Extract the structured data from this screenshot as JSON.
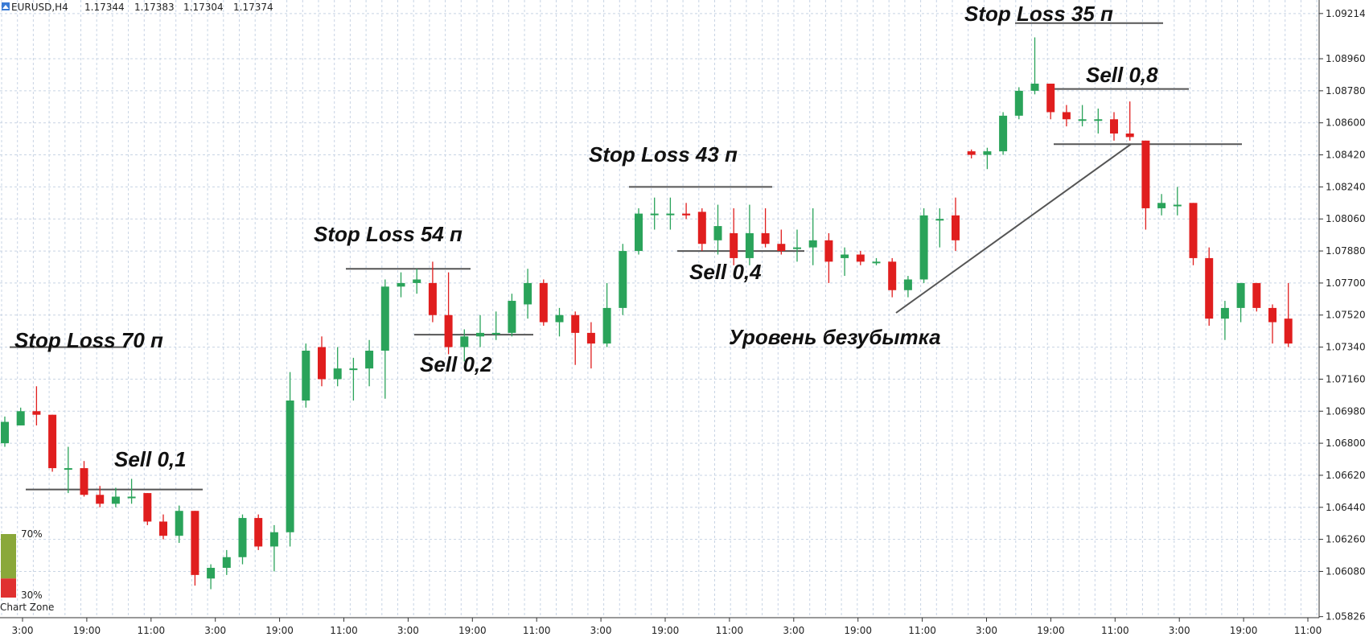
{
  "header": {
    "symbol": "EURUSD,H4",
    "open": "1.17344",
    "high": "1.17383",
    "low": "1.17304",
    "close": "1.17374"
  },
  "chart_zone": {
    "top_label": "70%",
    "bottom_label": "30%",
    "title": "Chart Zone",
    "green_share": 0.7,
    "colors": {
      "green": "#8aa83a",
      "red": "#e03030"
    }
  },
  "chart_data": {
    "type": "candlestick",
    "ylim": [
      1.0582,
      1.0929
    ],
    "y_ticks": [
      "1.09214",
      "1.08960",
      "1.08780",
      "1.08600",
      "1.08420",
      "1.08240",
      "1.08060",
      "1.07880",
      "1.07700",
      "1.07520",
      "1.07340",
      "1.07160",
      "1.06980",
      "1.06800",
      "1.06620",
      "1.06440",
      "1.06260",
      "1.06080",
      "1.05826"
    ],
    "x_ticks": [
      "3:00",
      "19:00",
      "11:00",
      "3:00",
      "19:00",
      "11:00",
      "3:00",
      "19:00",
      "11:00",
      "3:00",
      "19:00",
      "11:00",
      "3:00",
      "19:00",
      "11:00",
      "3:00",
      "19:00",
      "11:00",
      "3:00",
      "19:00",
      "11:00"
    ],
    "grid": true,
    "colors": {
      "up": "#2aa35a",
      "down": "#e01e1e",
      "grid": "#c8d4e4",
      "line": "#555555"
    },
    "candles": [
      {
        "o": 1.068,
        "h": 1.0695,
        "l": 1.0678,
        "c": 1.0692
      },
      {
        "o": 1.069,
        "h": 1.07,
        "l": 1.069,
        "c": 1.0698
      },
      {
        "o": 1.0698,
        "h": 1.0712,
        "l": 1.069,
        "c": 1.0696
      },
      {
        "o": 1.0696,
        "h": 1.0696,
        "l": 1.0664,
        "c": 1.0666
      },
      {
        "o": 1.0666,
        "h": 1.0678,
        "l": 1.0652,
        "c": 1.0666
      },
      {
        "o": 1.0666,
        "h": 1.067,
        "l": 1.065,
        "c": 1.0651
      },
      {
        "o": 1.0651,
        "h": 1.0656,
        "l": 1.0644,
        "c": 1.0646
      },
      {
        "o": 1.0646,
        "h": 1.0655,
        "l": 1.0644,
        "c": 1.065
      },
      {
        "o": 1.065,
        "h": 1.066,
        "l": 1.0646,
        "c": 1.065
      },
      {
        "o": 1.0652,
        "h": 1.0652,
        "l": 1.0634,
        "c": 1.0636
      },
      {
        "o": 1.0636,
        "h": 1.064,
        "l": 1.0626,
        "c": 1.0628
      },
      {
        "o": 1.0628,
        "h": 1.0645,
        "l": 1.0624,
        "c": 1.0642
      },
      {
        "o": 1.0642,
        "h": 1.0642,
        "l": 1.06,
        "c": 1.0606
      },
      {
        "o": 1.0604,
        "h": 1.0612,
        "l": 1.0598,
        "c": 1.061
      },
      {
        "o": 1.061,
        "h": 1.062,
        "l": 1.0606,
        "c": 1.0616
      },
      {
        "o": 1.0616,
        "h": 1.064,
        "l": 1.0612,
        "c": 1.0638
      },
      {
        "o": 1.0638,
        "h": 1.064,
        "l": 1.062,
        "c": 1.0622
      },
      {
        "o": 1.0622,
        "h": 1.0634,
        "l": 1.0608,
        "c": 1.063
      },
      {
        "o": 1.063,
        "h": 1.072,
        "l": 1.0622,
        "c": 1.0704
      },
      {
        "o": 1.0704,
        "h": 1.0736,
        "l": 1.07,
        "c": 1.0732
      },
      {
        "o": 1.0734,
        "h": 1.074,
        "l": 1.0712,
        "c": 1.0716
      },
      {
        "o": 1.0716,
        "h": 1.0734,
        "l": 1.0712,
        "c": 1.0722
      },
      {
        "o": 1.0722,
        "h": 1.0728,
        "l": 1.0704,
        "c": 1.0722
      },
      {
        "o": 1.0722,
        "h": 1.0738,
        "l": 1.0712,
        "c": 1.0732
      },
      {
        "o": 1.0732,
        "h": 1.0772,
        "l": 1.0705,
        "c": 1.0768
      },
      {
        "o": 1.0768,
        "h": 1.0776,
        "l": 1.0762,
        "c": 1.077
      },
      {
        "o": 1.077,
        "h": 1.0778,
        "l": 1.0764,
        "c": 1.0772
      },
      {
        "o": 1.077,
        "h": 1.0782,
        "l": 1.0748,
        "c": 1.0752
      },
      {
        "o": 1.0752,
        "h": 1.0776,
        "l": 1.073,
        "c": 1.0734
      },
      {
        "o": 1.0734,
        "h": 1.0744,
        "l": 1.0726,
        "c": 1.074
      },
      {
        "o": 1.074,
        "h": 1.0752,
        "l": 1.0734,
        "c": 1.0742
      },
      {
        "o": 1.0742,
        "h": 1.0754,
        "l": 1.0738,
        "c": 1.0742
      },
      {
        "o": 1.0742,
        "h": 1.0764,
        "l": 1.074,
        "c": 1.076
      },
      {
        "o": 1.0758,
        "h": 1.0778,
        "l": 1.075,
        "c": 1.077
      },
      {
        "o": 1.077,
        "h": 1.0772,
        "l": 1.0746,
        "c": 1.0748
      },
      {
        "o": 1.0748,
        "h": 1.0756,
        "l": 1.074,
        "c": 1.0752
      },
      {
        "o": 1.0752,
        "h": 1.0754,
        "l": 1.0724,
        "c": 1.0742
      },
      {
        "o": 1.0742,
        "h": 1.0748,
        "l": 1.0722,
        "c": 1.0736
      },
      {
        "o": 1.0736,
        "h": 1.077,
        "l": 1.0734,
        "c": 1.0756
      },
      {
        "o": 1.0756,
        "h": 1.0792,
        "l": 1.0752,
        "c": 1.0788
      },
      {
        "o": 1.0788,
        "h": 1.0812,
        "l": 1.0786,
        "c": 1.0809
      },
      {
        "o": 1.0809,
        "h": 1.0818,
        "l": 1.08,
        "c": 1.0809
      },
      {
        "o": 1.0809,
        "h": 1.0818,
        "l": 1.08,
        "c": 1.0809
      },
      {
        "o": 1.0809,
        "h": 1.0815,
        "l": 1.0806,
        "c": 1.0808
      },
      {
        "o": 1.081,
        "h": 1.0812,
        "l": 1.0788,
        "c": 1.0792
      },
      {
        "o": 1.0794,
        "h": 1.0814,
        "l": 1.0786,
        "c": 1.0802
      },
      {
        "o": 1.0798,
        "h": 1.0812,
        "l": 1.078,
        "c": 1.0784
      },
      {
        "o": 1.0784,
        "h": 1.0814,
        "l": 1.078,
        "c": 1.0798
      },
      {
        "o": 1.0798,
        "h": 1.0812,
        "l": 1.079,
        "c": 1.0792
      },
      {
        "o": 1.0792,
        "h": 1.08,
        "l": 1.0786,
        "c": 1.0788
      },
      {
        "o": 1.079,
        "h": 1.08,
        "l": 1.0782,
        "c": 1.079
      },
      {
        "o": 1.079,
        "h": 1.0812,
        "l": 1.078,
        "c": 1.0794
      },
      {
        "o": 1.0794,
        "h": 1.0798,
        "l": 1.077,
        "c": 1.0782
      },
      {
        "o": 1.0784,
        "h": 1.079,
        "l": 1.0774,
        "c": 1.0786
      },
      {
        "o": 1.0786,
        "h": 1.0788,
        "l": 1.078,
        "c": 1.0782
      },
      {
        "o": 1.0782,
        "h": 1.0784,
        "l": 1.078,
        "c": 1.0782
      },
      {
        "o": 1.0782,
        "h": 1.0784,
        "l": 1.0762,
        "c": 1.0766
      },
      {
        "o": 1.0766,
        "h": 1.0774,
        "l": 1.0762,
        "c": 1.0772
      },
      {
        "o": 1.0772,
        "h": 1.0812,
        "l": 1.077,
        "c": 1.0808
      },
      {
        "o": 1.0806,
        "h": 1.0812,
        "l": 1.079,
        "c": 1.0806
      },
      {
        "o": 1.0808,
        "h": 1.0818,
        "l": 1.0788,
        "c": 1.0794
      },
      {
        "o": 1.0844,
        "h": 1.0845,
        "l": 1.084,
        "c": 1.0842
      },
      {
        "o": 1.0842,
        "h": 1.0846,
        "l": 1.0834,
        "c": 1.0844
      },
      {
        "o": 1.0844,
        "h": 1.0866,
        "l": 1.0842,
        "c": 1.0864
      },
      {
        "o": 1.0864,
        "h": 1.088,
        "l": 1.0862,
        "c": 1.0878
      },
      {
        "o": 1.0878,
        "h": 1.0908,
        "l": 1.0876,
        "c": 1.0882
      },
      {
        "o": 1.0882,
        "h": 1.0882,
        "l": 1.0862,
        "c": 1.0866
      },
      {
        "o": 1.0866,
        "h": 1.087,
        "l": 1.0858,
        "c": 1.0862
      },
      {
        "o": 1.0862,
        "h": 1.087,
        "l": 1.0858,
        "c": 1.0862
      },
      {
        "o": 1.0862,
        "h": 1.0868,
        "l": 1.0854,
        "c": 1.0862
      },
      {
        "o": 1.0862,
        "h": 1.0866,
        "l": 1.085,
        "c": 1.0854
      },
      {
        "o": 1.0854,
        "h": 1.0872,
        "l": 1.085,
        "c": 1.0852
      },
      {
        "o": 1.085,
        "h": 1.085,
        "l": 1.08,
        "c": 1.0812
      },
      {
        "o": 1.0812,
        "h": 1.082,
        "l": 1.0808,
        "c": 1.0815
      },
      {
        "o": 1.0814,
        "h": 1.0824,
        "l": 1.0808,
        "c": 1.0814
      },
      {
        "o": 1.0815,
        "h": 1.0815,
        "l": 1.078,
        "c": 1.0784
      },
      {
        "o": 1.0784,
        "h": 1.079,
        "l": 1.0746,
        "c": 1.075
      },
      {
        "o": 1.075,
        "h": 1.076,
        "l": 1.0738,
        "c": 1.0756
      },
      {
        "o": 1.0756,
        "h": 1.077,
        "l": 1.0748,
        "c": 1.077
      },
      {
        "o": 1.077,
        "h": 1.077,
        "l": 1.0754,
        "c": 1.0756
      },
      {
        "o": 1.0756,
        "h": 1.0758,
        "l": 1.0736,
        "c": 1.0748
      },
      {
        "o": 1.075,
        "h": 1.077,
        "l": 1.0734,
        "c": 1.0736
      }
    ],
    "annotations": [
      {
        "text": "Stop Loss 70 п",
        "price": 1.0734
      },
      {
        "text": "Sell 0,1",
        "price": 1.0654
      },
      {
        "text": "Stop Loss 54 п",
        "price": 1.0778
      },
      {
        "text": "Sell 0,2",
        "price": 1.0741
      },
      {
        "text": "Stop Loss 43 п",
        "price": 1.0824
      },
      {
        "text": "Sell 0,4",
        "price": 1.0788
      },
      {
        "text": "Уровень безубытка"
      },
      {
        "text": "Stop Loss 35 п",
        "price": 1.0916
      },
      {
        "text": "Sell 0,8",
        "price": 1.0879
      }
    ],
    "breakeven_level": 1.0848
  }
}
